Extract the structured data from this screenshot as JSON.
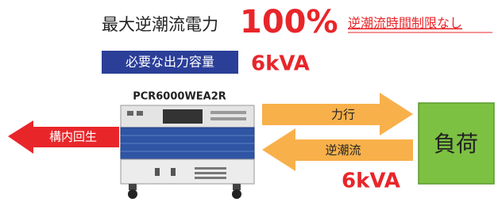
{
  "headline": {
    "text": "最大逆潮流電力",
    "value": "100%",
    "note": "逆潮流時間制限なし"
  },
  "requirement": {
    "label": "必要な出力容量",
    "value": "6kVA"
  },
  "device": {
    "model": "PCR6000WEA2R"
  },
  "arrows": {
    "regeneration": "構内回生",
    "power_running": "力行",
    "reverse_flow": "逆潮流",
    "reverse_flow_value": "6kVA"
  },
  "load": {
    "label": "負荷"
  }
}
